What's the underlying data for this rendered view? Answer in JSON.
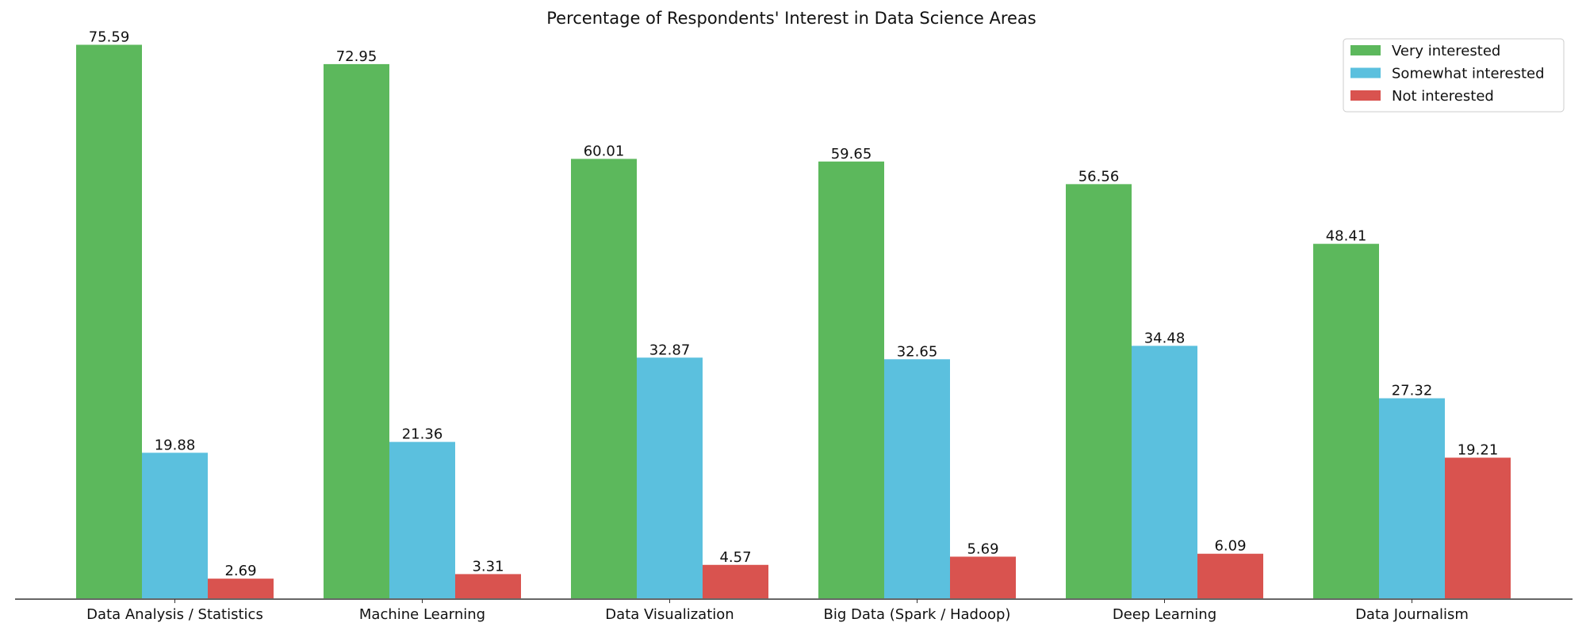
{
  "chart_data": {
    "type": "bar",
    "title": "Percentage of Respondents' Interest in Data Science Areas",
    "xlabel": "",
    "ylabel": "",
    "ylim": [
      0,
      79
    ],
    "grid": false,
    "legend_position": "top-right",
    "categories": [
      "Data Analysis / Statistics",
      "Machine Learning",
      "Data Visualization",
      "Big Data (Spark / Hadoop)",
      "Deep Learning",
      "Data Journalism"
    ],
    "series": [
      {
        "name": "Very interested",
        "color": "#5cb85c",
        "values": [
          75.59,
          72.95,
          60.01,
          59.65,
          56.56,
          48.41
        ],
        "labels": [
          "75.59",
          "72.95",
          "60.01",
          "59.65",
          "56.56",
          "48.41"
        ]
      },
      {
        "name": "Somewhat interested",
        "color": "#5bc0de",
        "values": [
          19.88,
          21.36,
          32.87,
          32.65,
          34.48,
          27.32
        ],
        "labels": [
          "19.88",
          "21.36",
          "32.87",
          "32.65",
          "34.48",
          "27.32"
        ]
      },
      {
        "name": "Not interested",
        "color": "#d9534f",
        "values": [
          2.69,
          3.31,
          4.57,
          5.69,
          6.09,
          19.21
        ],
        "labels": [
          "2.69",
          "3.31",
          "4.57",
          "5.69",
          "6.09",
          "19.21"
        ]
      }
    ]
  }
}
